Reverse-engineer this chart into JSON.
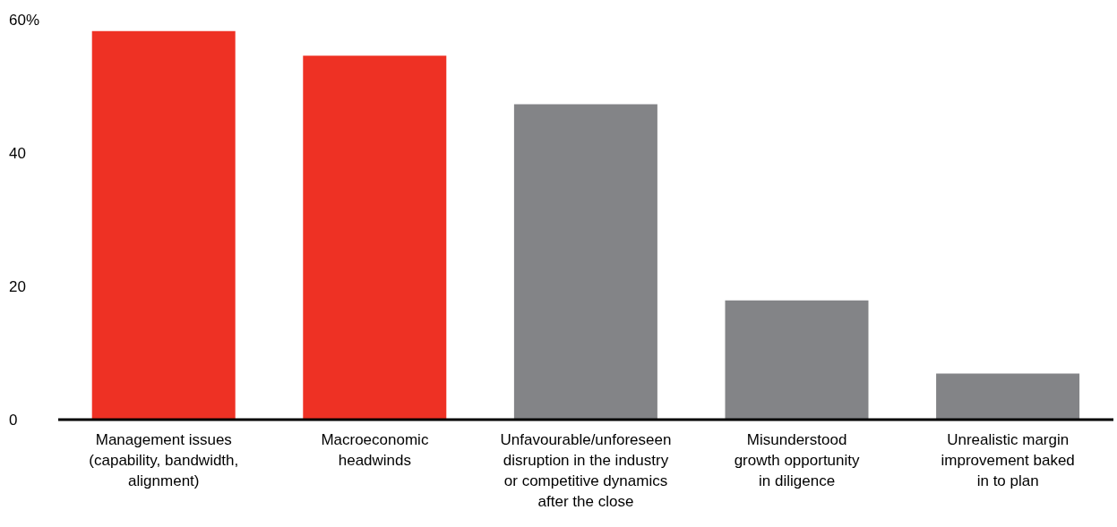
{
  "chart_data": {
    "type": "bar",
    "categories": [
      "Management issues\n(capability, bandwidth,\nalignment)",
      "Macroeconomic\nheadwinds",
      "Unfavourable/unforeseen\ndisruption in the industry\nor competitive dynamics\nafter the close",
      "Misunderstood\ngrowth opportunity\nin diligence",
      "Unrealistic margin\nimprovement baked\nin to plan"
    ],
    "values": [
      58.3,
      54.6,
      47.3,
      17.9,
      6.9
    ],
    "colors": [
      "#ee3124",
      "#ee3124",
      "#838487",
      "#838487",
      "#838487"
    ],
    "ylim": [
      0,
      60
    ],
    "yticks": [
      0,
      20,
      40,
      {
        "value": 60,
        "label": "60%"
      }
    ],
    "grid": false
  }
}
